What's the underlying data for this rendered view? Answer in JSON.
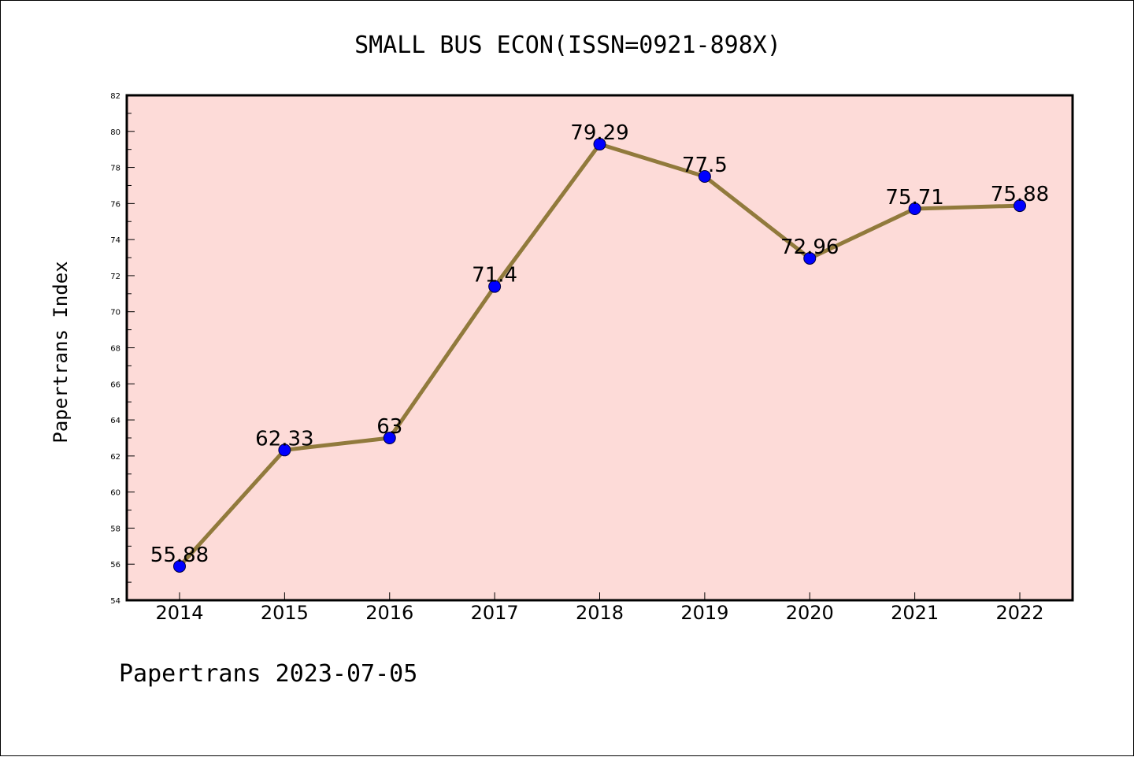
{
  "chart_data": {
    "type": "line",
    "title": "SMALL BUS ECON(ISSN=0921-898X)",
    "xlabel": "",
    "ylabel": "Papertrans Index",
    "footer": "Papertrans 2023-07-05",
    "categories": [
      "2014",
      "2015",
      "2016",
      "2017",
      "2018",
      "2019",
      "2020",
      "2021",
      "2022"
    ],
    "values": [
      55.88,
      62.33,
      63,
      71.4,
      79.29,
      77.5,
      72.96,
      75.71,
      75.88
    ],
    "data_labels": [
      "55.88",
      "62.33",
      "63",
      "71.4",
      "79.29",
      "77.5",
      "72.96",
      "75.71",
      "75.88"
    ],
    "ylim": [
      54,
      82
    ],
    "yticks": [
      "54",
      "56",
      "58",
      "60",
      "62",
      "64",
      "66",
      "68",
      "70",
      "72",
      "74",
      "76",
      "78",
      "80",
      "82"
    ],
    "grid": false,
    "legend": "none",
    "colors": {
      "plot_background": "#fddbd8",
      "line": "#917a3c",
      "marker": "#0000ff"
    }
  }
}
